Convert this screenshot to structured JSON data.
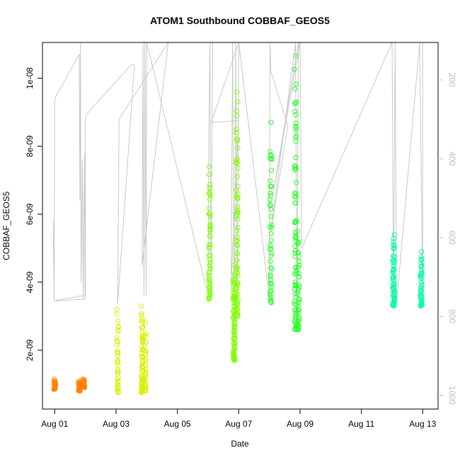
{
  "chart_data": {
    "type": "scatter",
    "title": "ATOM1 Southbound COBBAF_GEOS5",
    "xlabel": "Date",
    "ylabel": "COBBAF_GEOS5",
    "x_ticks": [
      "Aug 01",
      "Aug 03",
      "Aug 05",
      "Aug 07",
      "Aug 09",
      "Aug 11",
      "Aug 13"
    ],
    "y_ticks": [
      "2e-09",
      "4e-09",
      "6e-09",
      "8e-09",
      "1e-08"
    ],
    "y2_ticks": [
      "200",
      "400",
      "600",
      "800",
      "1000"
    ],
    "xlim_days": [
      0.6,
      13.5
    ],
    "ylim": [
      2.7e-10,
      1.105e-08
    ],
    "y2lim": [
      1035,
      105
    ],
    "colors": {
      "line": "#c8c8c8",
      "right_axis": "#bdbdbd",
      "frame": "#000000"
    },
    "series": [
      {
        "color": "#ff8000",
        "clusters": [
          {
            "x": 1.0,
            "ymin": 8.5e-10,
            "ymax": 1.15e-09,
            "n": 20
          },
          {
            "x": 1.8,
            "ymin": 8e-10,
            "ymax": 1.1e-09,
            "n": 30
          },
          {
            "x": 1.95,
            "ymin": 9e-10,
            "ymax": 1.15e-09,
            "n": 25
          }
        ]
      },
      {
        "color": "#d8f000",
        "clusters": [
          {
            "x": 3.05,
            "ymin": 7.5e-10,
            "ymax": 3.2e-09,
            "n": 35
          },
          {
            "x": 3.85,
            "ymin": 7.5e-10,
            "ymax": 3.3e-09,
            "n": 60
          },
          {
            "x": 3.95,
            "ymin": 8e-10,
            "ymax": 2.8e-09,
            "n": 30
          }
        ]
      },
      {
        "color": "#80ff00",
        "clusters": [
          {
            "x": 6.05,
            "ymin": 3.5e-09,
            "ymax": 7.4e-09,
            "n": 55
          },
          {
            "x": 6.85,
            "ymin": 1.7e-09,
            "ymax": 4.5e-09,
            "n": 80
          },
          {
            "x": 6.95,
            "ymin": 3e-09,
            "ymax": 9.6e-09,
            "n": 70
          }
        ]
      },
      {
        "color": "#20ff20",
        "clusters": [
          {
            "x": 8.05,
            "ymin": 3.4e-09,
            "ymax": 8.7e-09,
            "n": 45
          },
          {
            "x": 8.85,
            "ymin": 2.6e-09,
            "ymax": 1.065e-08,
            "n": 70
          },
          {
            "x": 8.95,
            "ymin": 2.6e-09,
            "ymax": 5.5e-09,
            "n": 35
          }
        ]
      },
      {
        "color": "#00ffa0",
        "clusters": [
          {
            "x": 12.05,
            "ymin": 3.3e-09,
            "ymax": 5.4e-09,
            "n": 55
          },
          {
            "x": 12.95,
            "ymin": 3.3e-09,
            "ymax": 4.9e-09,
            "n": 40
          }
        ]
      }
    ],
    "path": [
      [
        0.95,
        5.8e-09
      ],
      [
        0.98,
        3.45e-09
      ],
      [
        1.0,
        9.4e-09
      ],
      [
        1.8,
        1.07e-08
      ],
      [
        1.82,
        6.4e-09
      ],
      [
        1.84,
        1.105e-08
      ],
      [
        1.86,
        4e-09
      ],
      [
        1.9,
        7.6e-09
      ],
      [
        1.93,
        3.5e-09
      ],
      [
        1.97,
        7.8e-09
      ],
      [
        1.99,
        3.5e-09
      ],
      [
        0.98,
        3.45e-09
      ],
      [
        1.84,
        3.6e-09
      ],
      [
        2.0,
        3.6e-09
      ],
      [
        2.0,
        8.9e-09
      ],
      [
        3.5,
        1.04e-08
      ],
      [
        3.6,
        1.04e-08
      ],
      [
        3.05,
        3.35e-09
      ],
      [
        3.1,
        8.8e-09
      ],
      [
        4.7,
        1.105e-08
      ],
      [
        3.85,
        4.5e-09
      ],
      [
        3.88,
        1.105e-08
      ],
      [
        3.91,
        3.6e-09
      ],
      [
        3.94,
        1.105e-08
      ],
      [
        3.98,
        3.6e-09
      ],
      [
        4.0,
        1.105e-08
      ],
      [
        6.0,
        3.6e-09
      ],
      [
        6.03,
        8.7e-09
      ],
      [
        6.06,
        1.105e-08
      ],
      [
        6.1,
        3.5e-09
      ],
      [
        6.15,
        1.105e-08
      ],
      [
        7.0,
        1.105e-08
      ],
      [
        6.1,
        8.7e-09
      ],
      [
        7.0,
        8.75e-09
      ],
      [
        6.75,
        4e-09
      ],
      [
        6.8,
        1.105e-08
      ],
      [
        6.85,
        2e-09
      ],
      [
        6.9,
        1.105e-08
      ],
      [
        6.95,
        3.2e-09
      ],
      [
        7.0,
        1.105e-08
      ],
      [
        8.0,
        3.5e-09
      ],
      [
        8.02,
        1.105e-08
      ],
      [
        8.05,
        1.02e-08
      ],
      [
        8.6,
        8.6e-09
      ],
      [
        8.05,
        5.5e-09
      ],
      [
        8.85,
        1.105e-08
      ],
      [
        8.9,
        2.8e-09
      ],
      [
        8.95,
        1.105e-08
      ],
      [
        8.1,
        6.5e-09
      ],
      [
        9.0,
        1.105e-08
      ],
      [
        9.05,
        5e-09
      ],
      [
        12.0,
        1.105e-08
      ],
      [
        12.05,
        3.3e-09
      ],
      [
        12.1,
        1.105e-08
      ],
      [
        12.15,
        3.4e-09
      ],
      [
        12.9,
        1.105e-08
      ],
      [
        13.0,
        3.3e-09
      ],
      [
        13.0,
        1.105e-08
      ]
    ]
  }
}
